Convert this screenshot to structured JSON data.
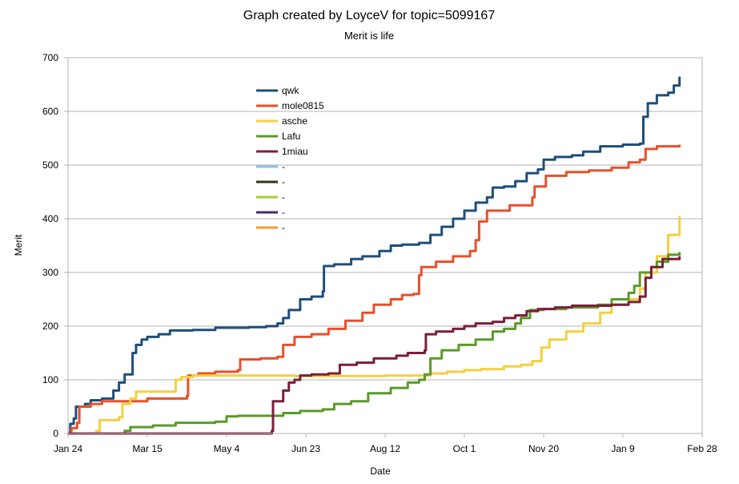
{
  "chart_data": {
    "type": "line",
    "title": "Graph created by LoyceV for topic=5099167",
    "subtitle": "Merit is life",
    "xlabel": "Date",
    "ylabel": "Merit",
    "x_ticks": [
      "Jan 24",
      "Mar 15",
      "May 4",
      "Jun 23",
      "Aug 12",
      "Oct 1",
      "Nov 20",
      "Jan 9",
      "Feb 28"
    ],
    "xlim": [
      "Jan 24",
      "Feb 28"
    ],
    "ylim": [
      0,
      700
    ],
    "y_ticks": [
      0,
      100,
      200,
      300,
      400,
      500,
      600,
      700
    ],
    "grid": "horizontal",
    "legend_position": "top-left-inside",
    "series": [
      {
        "name": "qwk",
        "color": "#1f4e79",
        "points": [
          [
            0,
            0
          ],
          [
            2,
            18
          ],
          [
            5,
            28
          ],
          [
            7,
            50
          ],
          [
            15,
            55
          ],
          [
            20,
            62
          ],
          [
            30,
            65
          ],
          [
            40,
            80
          ],
          [
            45,
            95
          ],
          [
            50,
            110
          ],
          [
            57,
            150
          ],
          [
            60,
            165
          ],
          [
            65,
            175
          ],
          [
            70,
            180
          ],
          [
            80,
            185
          ],
          [
            90,
            192
          ],
          [
            110,
            193
          ],
          [
            130,
            197
          ],
          [
            160,
            198
          ],
          [
            175,
            200
          ],
          [
            185,
            205
          ],
          [
            190,
            215
          ],
          [
            195,
            230
          ],
          [
            205,
            250
          ],
          [
            215,
            255
          ],
          [
            225,
            265
          ],
          [
            226,
            312
          ],
          [
            235,
            315
          ],
          [
            250,
            325
          ],
          [
            260,
            330
          ],
          [
            275,
            340
          ],
          [
            285,
            350
          ],
          [
            295,
            352
          ],
          [
            310,
            355
          ],
          [
            320,
            370
          ],
          [
            330,
            385
          ],
          [
            340,
            400
          ],
          [
            350,
            415
          ],
          [
            360,
            430
          ],
          [
            370,
            440
          ],
          [
            375,
            458
          ],
          [
            385,
            460
          ],
          [
            395,
            470
          ],
          [
            405,
            485
          ],
          [
            415,
            492
          ],
          [
            420,
            510
          ],
          [
            430,
            515
          ],
          [
            445,
            518
          ],
          [
            455,
            525
          ],
          [
            470,
            535
          ],
          [
            490,
            538
          ],
          [
            505,
            540
          ],
          [
            508,
            590
          ],
          [
            512,
            615
          ],
          [
            520,
            630
          ],
          [
            530,
            635
          ],
          [
            535,
            648
          ],
          [
            540,
            665
          ]
        ]
      },
      {
        "name": "mole0815",
        "color": "#e8502a",
        "points": [
          [
            0,
            0
          ],
          [
            3,
            10
          ],
          [
            8,
            20
          ],
          [
            10,
            50
          ],
          [
            20,
            55
          ],
          [
            30,
            60
          ],
          [
            50,
            60
          ],
          [
            70,
            65
          ],
          [
            90,
            65
          ],
          [
            105,
            70
          ],
          [
            106,
            108
          ],
          [
            115,
            112
          ],
          [
            130,
            115
          ],
          [
            150,
            118
          ],
          [
            152,
            138
          ],
          [
            170,
            140
          ],
          [
            185,
            143
          ],
          [
            190,
            165
          ],
          [
            200,
            180
          ],
          [
            215,
            185
          ],
          [
            230,
            195
          ],
          [
            245,
            210
          ],
          [
            260,
            225
          ],
          [
            270,
            240
          ],
          [
            285,
            250
          ],
          [
            295,
            258
          ],
          [
            305,
            260
          ],
          [
            310,
            295
          ],
          [
            312,
            310
          ],
          [
            325,
            320
          ],
          [
            340,
            330
          ],
          [
            355,
            340
          ],
          [
            360,
            360
          ],
          [
            363,
            395
          ],
          [
            370,
            415
          ],
          [
            390,
            425
          ],
          [
            410,
            440
          ],
          [
            412,
            460
          ],
          [
            422,
            480
          ],
          [
            440,
            487
          ],
          [
            460,
            490
          ],
          [
            480,
            495
          ],
          [
            495,
            505
          ],
          [
            505,
            510
          ],
          [
            510,
            530
          ],
          [
            520,
            535
          ],
          [
            540,
            538
          ]
        ]
      },
      {
        "name": "asche",
        "color": "#f4d03f",
        "points": [
          [
            0,
            0
          ],
          [
            25,
            5
          ],
          [
            28,
            25
          ],
          [
            45,
            30
          ],
          [
            48,
            55
          ],
          [
            55,
            65
          ],
          [
            60,
            78
          ],
          [
            85,
            78
          ],
          [
            95,
            100
          ],
          [
            100,
            105
          ],
          [
            110,
            108
          ],
          [
            200,
            107
          ],
          [
            240,
            107
          ],
          [
            280,
            108
          ],
          [
            320,
            112
          ],
          [
            335,
            115
          ],
          [
            350,
            118
          ],
          [
            365,
            120
          ],
          [
            385,
            125
          ],
          [
            400,
            128
          ],
          [
            410,
            135
          ],
          [
            418,
            160
          ],
          [
            425,
            175
          ],
          [
            440,
            190
          ],
          [
            455,
            205
          ],
          [
            470,
            225
          ],
          [
            480,
            240
          ],
          [
            495,
            250
          ],
          [
            505,
            270
          ],
          [
            510,
            300
          ],
          [
            520,
            330
          ],
          [
            530,
            370
          ],
          [
            540,
            405
          ]
        ]
      },
      {
        "name": "Lafu",
        "color": "#5a9a2a",
        "points": [
          [
            0,
            0
          ],
          [
            30,
            0
          ],
          [
            50,
            5
          ],
          [
            55,
            12
          ],
          [
            75,
            15
          ],
          [
            95,
            20
          ],
          [
            130,
            22
          ],
          [
            140,
            32
          ],
          [
            150,
            33
          ],
          [
            180,
            33
          ],
          [
            190,
            38
          ],
          [
            205,
            42
          ],
          [
            225,
            45
          ],
          [
            235,
            55
          ],
          [
            250,
            60
          ],
          [
            265,
            75
          ],
          [
            285,
            85
          ],
          [
            300,
            95
          ],
          [
            310,
            100
          ],
          [
            315,
            110
          ],
          [
            320,
            140
          ],
          [
            330,
            155
          ],
          [
            345,
            165
          ],
          [
            360,
            175
          ],
          [
            375,
            190
          ],
          [
            385,
            195
          ],
          [
            395,
            205
          ],
          [
            400,
            215
          ],
          [
            408,
            230
          ],
          [
            420,
            232
          ],
          [
            440,
            235
          ],
          [
            455,
            235
          ],
          [
            468,
            240
          ],
          [
            480,
            250
          ],
          [
            495,
            262
          ],
          [
            500,
            275
          ],
          [
            505,
            300
          ],
          [
            515,
            310
          ],
          [
            520,
            320
          ],
          [
            530,
            333
          ],
          [
            540,
            338
          ]
        ]
      },
      {
        "name": "1miau",
        "color": "#7b1f3a",
        "points": [
          [
            0,
            0
          ],
          [
            20,
            0
          ],
          [
            60,
            0
          ],
          [
            100,
            0
          ],
          [
            170,
            0
          ],
          [
            180,
            5
          ],
          [
            181,
            60
          ],
          [
            190,
            80
          ],
          [
            195,
            95
          ],
          [
            200,
            100
          ],
          [
            205,
            108
          ],
          [
            215,
            110
          ],
          [
            230,
            112
          ],
          [
            240,
            128
          ],
          [
            255,
            132
          ],
          [
            270,
            140
          ],
          [
            290,
            145
          ],
          [
            300,
            150
          ],
          [
            315,
            155
          ],
          [
            316,
            185
          ],
          [
            325,
            190
          ],
          [
            340,
            195
          ],
          [
            350,
            200
          ],
          [
            360,
            205
          ],
          [
            375,
            208
          ],
          [
            385,
            215
          ],
          [
            395,
            220
          ],
          [
            405,
            228
          ],
          [
            415,
            232
          ],
          [
            430,
            235
          ],
          [
            445,
            238
          ],
          [
            460,
            238
          ],
          [
            480,
            240
          ],
          [
            495,
            245
          ],
          [
            505,
            255
          ],
          [
            510,
            290
          ],
          [
            515,
            310
          ],
          [
            525,
            325
          ],
          [
            540,
            330
          ]
        ]
      },
      {
        "name": "-",
        "color": "#8fc3ea",
        "points": []
      },
      {
        "name": "-",
        "color": "#2e3a16",
        "points": []
      },
      {
        "name": "-",
        "color": "#a6cc33",
        "points": []
      },
      {
        "name": "-",
        "color": "#4a2a66",
        "points": []
      },
      {
        "name": "-",
        "color": "#f39c2a",
        "points": []
      }
    ]
  }
}
